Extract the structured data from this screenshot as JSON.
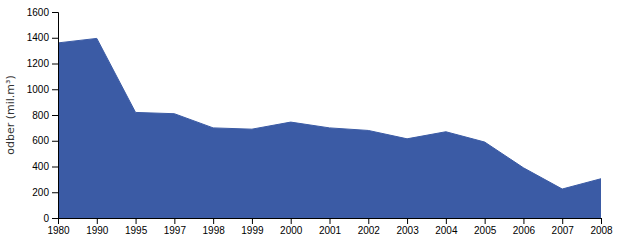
{
  "chart_data": {
    "type": "area",
    "categories": [
      "1980",
      "1990",
      "1995",
      "1997",
      "1998",
      "1999",
      "2000",
      "2001",
      "2002",
      "2003",
      "2004",
      "2005",
      "2006",
      "2007",
      "2008"
    ],
    "values": [
      1360,
      1395,
      820,
      810,
      700,
      690,
      745,
      700,
      680,
      615,
      670,
      590,
      390,
      225,
      305
    ],
    "color": "#3B5BA5",
    "y_label": "odber (mil.m³)",
    "ylim": [
      0,
      1600
    ],
    "yticks": [
      0,
      200,
      400,
      600,
      800,
      1000,
      1200,
      1400,
      1600
    ]
  }
}
